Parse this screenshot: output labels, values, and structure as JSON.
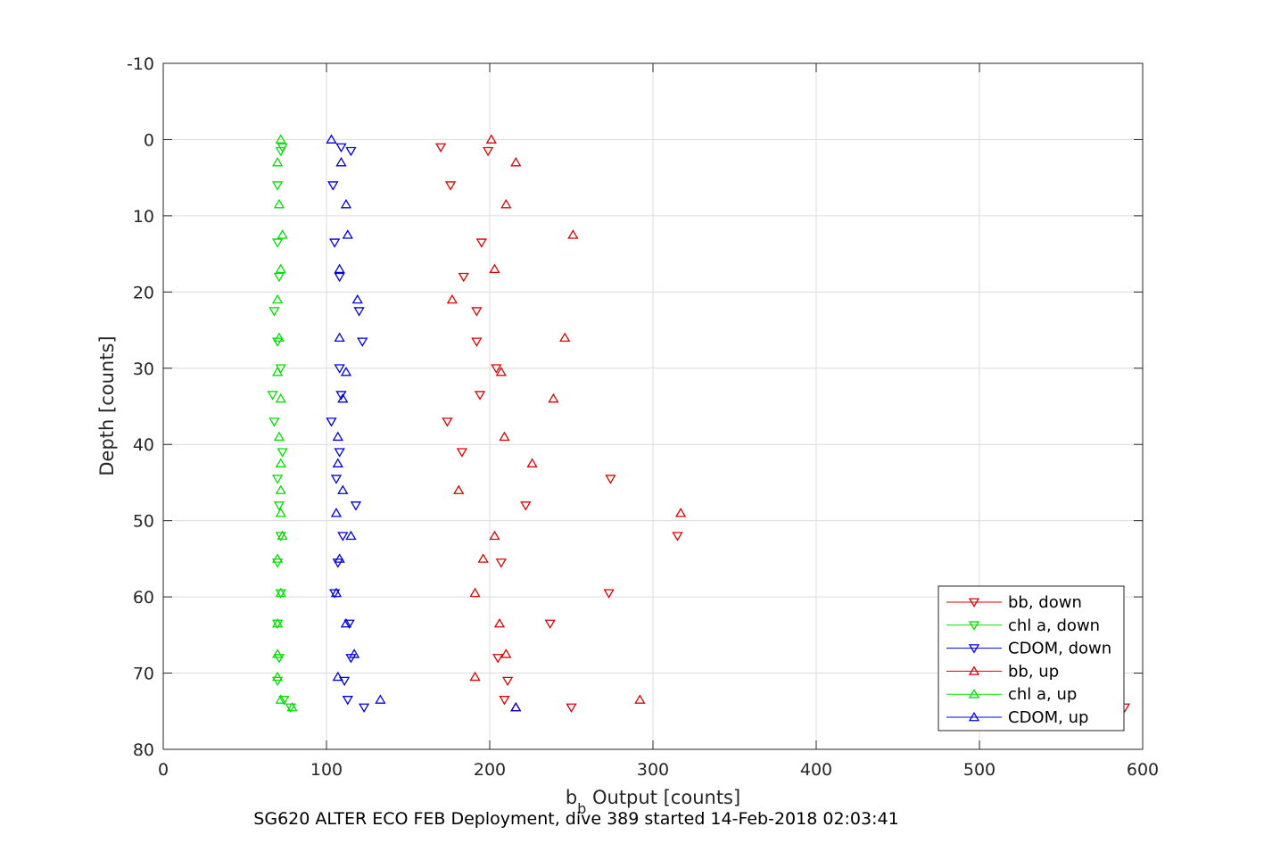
{
  "chart_data": {
    "type": "scatter",
    "xlabel_base": "b",
    "xlabel_sub": "b",
    "xlabel_rest": " Output [counts]",
    "ylabel": "Depth [counts]",
    "caption": "SG620 ALTER ECO FEB Deployment, dive 389 started 14-Feb-2018 02:03:41",
    "xlim": [
      0,
      600
    ],
    "ylim": [
      -10,
      80
    ],
    "y_reversed": true,
    "xticks": [
      0,
      100,
      200,
      300,
      400,
      500,
      600
    ],
    "yticks": [
      -10,
      0,
      10,
      20,
      30,
      40,
      50,
      60,
      70,
      80
    ],
    "grid": true,
    "legend_position": "bottom-right",
    "series": [
      {
        "name": "bb, down",
        "color": "#e00000",
        "marker": "triangle-down",
        "points": [
          [
            170,
            1
          ],
          [
            199,
            1.5
          ],
          [
            176,
            6
          ],
          [
            195,
            13.5
          ],
          [
            184,
            18
          ],
          [
            192,
            22.5
          ],
          [
            192,
            26.5
          ],
          [
            204,
            30
          ],
          [
            194,
            33.5
          ],
          [
            174,
            37
          ],
          [
            183,
            41
          ],
          [
            274,
            44.5
          ],
          [
            222,
            48
          ],
          [
            315,
            52
          ],
          [
            207,
            55.5
          ],
          [
            273,
            59.5
          ],
          [
            237,
            63.5
          ],
          [
            205,
            68
          ],
          [
            211,
            71
          ],
          [
            209,
            73.5
          ],
          [
            250,
            74.5
          ],
          [
            589,
            74.5
          ]
        ]
      },
      {
        "name": "chl a, down",
        "color": "#00e000",
        "marker": "triangle-down",
        "points": [
          [
            73,
            1
          ],
          [
            72,
            1.5
          ],
          [
            70,
            6
          ],
          [
            70,
            13.5
          ],
          [
            71,
            18
          ],
          [
            68,
            22.5
          ],
          [
            70,
            26.5
          ],
          [
            72,
            30
          ],
          [
            67,
            33.5
          ],
          [
            68,
            37
          ],
          [
            73,
            41
          ],
          [
            70,
            44.5
          ],
          [
            71,
            48
          ],
          [
            72,
            52
          ],
          [
            70,
            55.5
          ],
          [
            72,
            59.5
          ],
          [
            70,
            63.5
          ],
          [
            71,
            68
          ],
          [
            70,
            71
          ],
          [
            74,
            73.5
          ],
          [
            78,
            74.5
          ]
        ]
      },
      {
        "name": "CDOM, down",
        "color": "#0000e0",
        "marker": "triangle-down",
        "points": [
          [
            109,
            1
          ],
          [
            115,
            1.5
          ],
          [
            104,
            6
          ],
          [
            105,
            13.5
          ],
          [
            108,
            18
          ],
          [
            120,
            22.5
          ],
          [
            122,
            26.5
          ],
          [
            108,
            30
          ],
          [
            109,
            33.5
          ],
          [
            103,
            37
          ],
          [
            108,
            41
          ],
          [
            106,
            44.5
          ],
          [
            118,
            48
          ],
          [
            110,
            52
          ],
          [
            107,
            55.5
          ],
          [
            105,
            59.5
          ],
          [
            114,
            63.5
          ],
          [
            115,
            68
          ],
          [
            111,
            71
          ],
          [
            113,
            73.5
          ],
          [
            123,
            74.5
          ]
        ]
      },
      {
        "name": "bb, up",
        "color": "#e00000",
        "marker": "triangle-up",
        "points": [
          [
            201,
            0
          ],
          [
            216,
            3
          ],
          [
            210,
            8.5
          ],
          [
            251,
            12.5
          ],
          [
            203,
            17
          ],
          [
            177,
            21
          ],
          [
            246,
            26
          ],
          [
            207,
            30.5
          ],
          [
            239,
            34
          ],
          [
            209,
            39
          ],
          [
            226,
            42.5
          ],
          [
            181,
            46
          ],
          [
            317,
            49
          ],
          [
            203,
            52
          ],
          [
            196,
            55
          ],
          [
            191,
            59.5
          ],
          [
            206,
            63.5
          ],
          [
            210,
            67.5
          ],
          [
            191,
            70.5
          ],
          [
            292,
            73.5
          ],
          [
            216,
            74.5
          ]
        ]
      },
      {
        "name": "chl a, up",
        "color": "#00e000",
        "marker": "triangle-up",
        "points": [
          [
            72,
            0
          ],
          [
            70,
            3
          ],
          [
            71,
            8.5
          ],
          [
            73,
            12.5
          ],
          [
            72,
            17
          ],
          [
            70,
            21
          ],
          [
            71,
            26
          ],
          [
            70,
            30.5
          ],
          [
            72,
            34
          ],
          [
            71,
            39
          ],
          [
            72,
            42.5
          ],
          [
            72,
            46
          ],
          [
            72,
            49
          ],
          [
            73,
            52
          ],
          [
            70,
            55
          ],
          [
            72,
            59.5
          ],
          [
            70,
            63.5
          ],
          [
            70,
            67.5
          ],
          [
            70,
            70.5
          ],
          [
            72,
            73.5
          ],
          [
            79,
            74.5
          ]
        ]
      },
      {
        "name": "CDOM, up",
        "color": "#0000e0",
        "marker": "triangle-up",
        "points": [
          [
            103,
            0
          ],
          [
            109,
            3
          ],
          [
            112,
            8.5
          ],
          [
            113,
            12.5
          ],
          [
            108,
            17
          ],
          [
            119,
            21
          ],
          [
            108,
            26
          ],
          [
            112,
            30.5
          ],
          [
            110,
            34
          ],
          [
            107,
            39
          ],
          [
            107,
            42.5
          ],
          [
            110,
            46
          ],
          [
            106,
            49
          ],
          [
            115,
            52
          ],
          [
            108,
            55
          ],
          [
            106,
            59.5
          ],
          [
            112,
            63.5
          ],
          [
            117,
            67.5
          ],
          [
            107,
            70.5
          ],
          [
            133,
            73.5
          ],
          [
            216,
            74.5
          ]
        ]
      }
    ]
  }
}
